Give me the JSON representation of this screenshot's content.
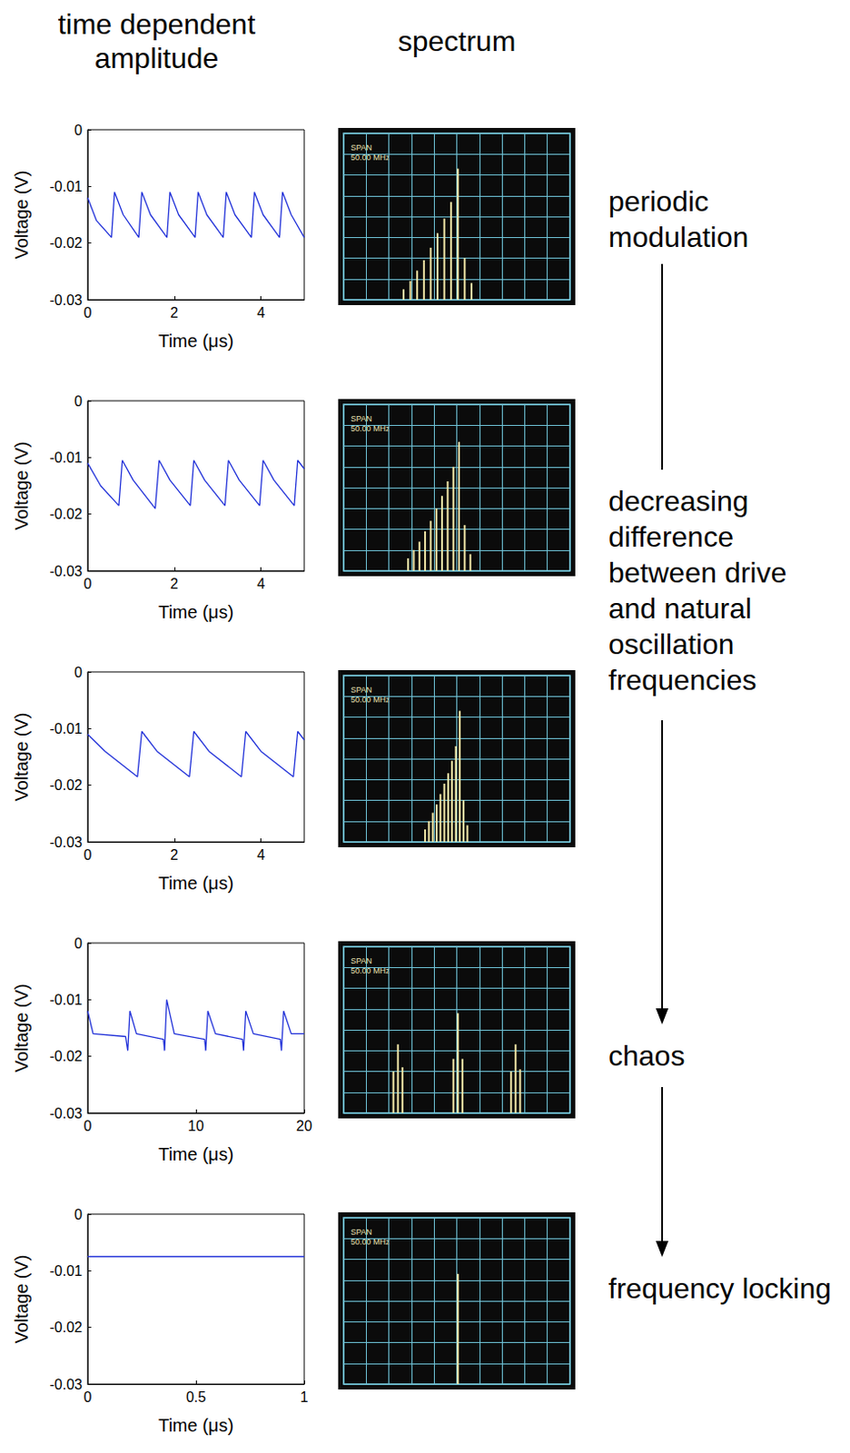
{
  "headers": [
    "time dependent amplitude",
    "spectrum"
  ],
  "annotations": [
    "periodic modulation",
    "decreasing difference between drive and natural oscillation frequencies",
    "chaos",
    "frequency locking"
  ],
  "chart_data": [
    {
      "type": "line",
      "xlabel": "Time (μs)",
      "ylabel": "Voltage (V)",
      "color": "#2030d8",
      "grid": false,
      "x": [
        0,
        0.2,
        0.55,
        0.62,
        0.82,
        1.18,
        1.25,
        1.45,
        1.83,
        1.9,
        2.1,
        2.48,
        2.55,
        2.75,
        3.13,
        3.2,
        3.4,
        3.78,
        3.85,
        4.05,
        4.43,
        4.5,
        4.7,
        5.0
      ],
      "values": [
        -0.012,
        -0.016,
        -0.019,
        -0.011,
        -0.015,
        -0.019,
        -0.011,
        -0.015,
        -0.019,
        -0.011,
        -0.015,
        -0.019,
        -0.011,
        -0.015,
        -0.019,
        -0.011,
        -0.015,
        -0.019,
        -0.011,
        -0.015,
        -0.019,
        -0.011,
        -0.015,
        -0.019
      ],
      "xlim": [
        0,
        5
      ],
      "xticks": [
        0,
        2,
        4
      ],
      "ylim": [
        -0.03,
        0
      ],
      "yticks": [
        -0.03,
        -0.02,
        -0.01,
        0
      ]
    },
    {
      "type": "bar",
      "annotation": [
        "SPAN",
        "50.00 MHz"
      ],
      "color": "#f2e8a8",
      "grid": true,
      "tick_labels": false,
      "x": [
        2.65,
        2.95,
        3.25,
        3.55,
        3.85,
        4.15,
        4.45,
        4.75,
        5.05,
        5.35,
        5.65
      ],
      "values": [
        0.5,
        0.9,
        1.4,
        1.9,
        2.5,
        3.2,
        3.9,
        4.7,
        6.3,
        2.0,
        0.8
      ],
      "xlim": [
        0,
        10
      ],
      "xticks": [
        0,
        1,
        2,
        3,
        4,
        5,
        6,
        7,
        8,
        9,
        10
      ],
      "ylim": [
        0,
        8
      ],
      "yticks": [
        0,
        1,
        2,
        3,
        4,
        5,
        6,
        7,
        8
      ]
    },
    {
      "type": "line",
      "xlabel": "Time (μs)",
      "ylabel": "Voltage (V)",
      "color": "#2030d8",
      "grid": false,
      "x": [
        0,
        0.3,
        0.72,
        0.8,
        1.05,
        1.56,
        1.65,
        1.9,
        2.37,
        2.45,
        2.7,
        3.17,
        3.25,
        3.5,
        3.97,
        4.05,
        4.3,
        4.77,
        4.85,
        5.0
      ],
      "values": [
        -0.011,
        -0.015,
        -0.0185,
        -0.0105,
        -0.014,
        -0.019,
        -0.0105,
        -0.014,
        -0.0185,
        -0.0105,
        -0.014,
        -0.0185,
        -0.0105,
        -0.014,
        -0.0185,
        -0.0105,
        -0.014,
        -0.0185,
        -0.0105,
        -0.012
      ],
      "xlim": [
        0,
        5
      ],
      "xticks": [
        0,
        2,
        4
      ],
      "ylim": [
        -0.03,
        0
      ],
      "yticks": [
        -0.03,
        -0.02,
        -0.01,
        0
      ]
    },
    {
      "type": "bar",
      "annotation": [
        "SPAN",
        "50.00 MHz"
      ],
      "color": "#f2e8a8",
      "grid": true,
      "tick_labels": false,
      "x": [
        2.85,
        3.1,
        3.35,
        3.6,
        3.85,
        4.1,
        4.35,
        4.6,
        4.85,
        5.1,
        5.35,
        5.6
      ],
      "values": [
        0.6,
        1.0,
        1.4,
        1.9,
        2.4,
        3.0,
        3.6,
        4.3,
        5.0,
        6.2,
        2.2,
        0.8
      ],
      "xlim": [
        0,
        10
      ],
      "xticks": [
        0,
        1,
        2,
        3,
        4,
        5,
        6,
        7,
        8,
        9,
        10
      ],
      "ylim": [
        0,
        8
      ],
      "yticks": [
        0,
        1,
        2,
        3,
        4,
        5,
        6,
        7,
        8
      ]
    },
    {
      "type": "line",
      "xlabel": "Time (μs)",
      "ylabel": "Voltage (V)",
      "color": "#2030d8",
      "grid": false,
      "x": [
        0,
        0.4,
        1.15,
        1.25,
        1.6,
        2.35,
        2.45,
        2.8,
        3.55,
        3.65,
        4.0,
        4.75,
        4.85,
        5.0
      ],
      "values": [
        -0.011,
        -0.014,
        -0.0185,
        -0.0105,
        -0.014,
        -0.0185,
        -0.0105,
        -0.014,
        -0.0185,
        -0.0105,
        -0.014,
        -0.0185,
        -0.0105,
        -0.012
      ],
      "xlim": [
        0,
        5
      ],
      "xticks": [
        0,
        2,
        4
      ],
      "ylim": [
        -0.03,
        0
      ],
      "yticks": [
        -0.03,
        -0.02,
        -0.01,
        0
      ]
    },
    {
      "type": "bar",
      "annotation": [
        "SPAN",
        "50.00 MHz"
      ],
      "color": "#f2e8a8",
      "grid": true,
      "tick_labels": false,
      "x": [
        3.6,
        3.77,
        3.94,
        4.11,
        4.28,
        4.45,
        4.62,
        4.79,
        4.96,
        5.13,
        5.3,
        5.47
      ],
      "values": [
        0.6,
        1.0,
        1.4,
        1.8,
        2.3,
        2.8,
        3.3,
        3.9,
        4.6,
        6.3,
        2.0,
        0.8
      ],
      "xlim": [
        0,
        10
      ],
      "xticks": [
        0,
        1,
        2,
        3,
        4,
        5,
        6,
        7,
        8,
        9,
        10
      ],
      "ylim": [
        0,
        8
      ],
      "yticks": [
        0,
        1,
        2,
        3,
        4,
        5,
        6,
        7,
        8
      ]
    },
    {
      "type": "line",
      "xlabel": "Time (μs)",
      "ylabel": "Voltage (V)",
      "color": "#2030d8",
      "grid": false,
      "x": [
        0,
        0.5,
        3.5,
        3.7,
        3.9,
        4.5,
        7.0,
        7.1,
        7.3,
        8.0,
        10.8,
        10.9,
        11.1,
        11.8,
        14.3,
        14.4,
        14.6,
        15.3,
        17.8,
        17.9,
        18.1,
        18.8,
        20
      ],
      "values": [
        -0.012,
        -0.016,
        -0.0165,
        -0.019,
        -0.012,
        -0.016,
        -0.017,
        -0.019,
        -0.01,
        -0.016,
        -0.017,
        -0.019,
        -0.012,
        -0.016,
        -0.017,
        -0.019,
        -0.012,
        -0.016,
        -0.017,
        -0.019,
        -0.012,
        -0.016,
        -0.016
      ],
      "xlim": [
        0,
        20
      ],
      "xticks": [
        0,
        10,
        20
      ],
      "ylim": [
        -0.03,
        0
      ],
      "yticks": [
        -0.03,
        -0.02,
        -0.01,
        0
      ]
    },
    {
      "type": "bar",
      "annotation": [
        "SPAN",
        "50.00 MHz"
      ],
      "color": "#f2e8a8",
      "grid": true,
      "tick_labels": false,
      "x": [
        2.2,
        2.4,
        2.6,
        4.85,
        5.05,
        5.25,
        7.4,
        7.6,
        7.8
      ],
      "values": [
        2.0,
        3.3,
        2.2,
        2.6,
        4.8,
        2.6,
        2.0,
        3.3,
        2.1
      ],
      "xlim": [
        0,
        10
      ],
      "xticks": [
        0,
        1,
        2,
        3,
        4,
        5,
        6,
        7,
        8,
        9,
        10
      ],
      "ylim": [
        0,
        8
      ],
      "yticks": [
        0,
        1,
        2,
        3,
        4,
        5,
        6,
        7,
        8
      ]
    },
    {
      "type": "line",
      "xlabel": "Time (μs)",
      "ylabel": "Voltage (V)",
      "color": "#2030d8",
      "grid": false,
      "x": [
        0,
        0.25,
        0.5,
        0.75,
        1
      ],
      "values": [
        -0.0075,
        -0.0075,
        -0.0075,
        -0.0075,
        -0.0075
      ],
      "xlim": [
        0,
        1
      ],
      "xticks": [
        0,
        0.5,
        1
      ],
      "ylim": [
        -0.03,
        0
      ],
      "yticks": [
        -0.03,
        -0.02,
        -0.01,
        0
      ]
    },
    {
      "type": "bar",
      "annotation": [
        "SPAN",
        "50.00 MHz"
      ],
      "color": "#f2e8a8",
      "grid": true,
      "tick_labels": false,
      "x": [
        5.05
      ],
      "values": [
        5.3
      ],
      "xlim": [
        0,
        10
      ],
      "xticks": [
        0,
        1,
        2,
        3,
        4,
        5,
        6,
        7,
        8,
        9,
        10
      ],
      "ylim": [
        0,
        8
      ],
      "yticks": [
        0,
        1,
        2,
        3,
        4,
        5,
        6,
        7,
        8
      ]
    }
  ]
}
